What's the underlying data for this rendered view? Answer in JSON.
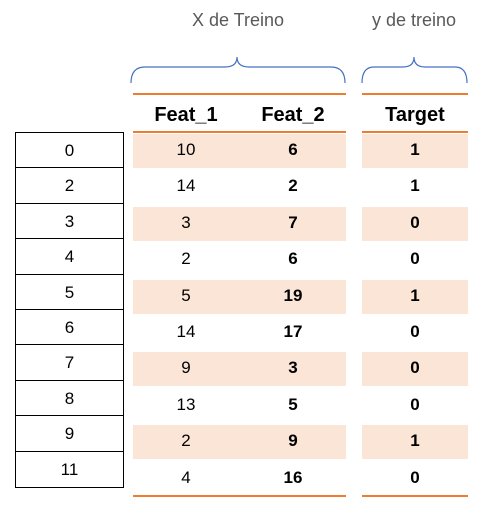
{
  "groups": {
    "x_label": "X de Treino",
    "y_label": "y de treino"
  },
  "columns": {
    "feat1": "Feat_1",
    "feat2": "Feat_2",
    "target": "Target"
  },
  "rows": [
    {
      "index": "0",
      "feat1": "10",
      "feat2": "6",
      "target": "1",
      "shaded": true
    },
    {
      "index": "2",
      "feat1": "14",
      "feat2": "2",
      "target": "1",
      "shaded": false
    },
    {
      "index": "3",
      "feat1": "3",
      "feat2": "7",
      "target": "0",
      "shaded": true
    },
    {
      "index": "4",
      "feat1": "2",
      "feat2": "6",
      "target": "0",
      "shaded": false
    },
    {
      "index": "5",
      "feat1": "5",
      "feat2": "19",
      "target": "1",
      "shaded": true
    },
    {
      "index": "6",
      "feat1": "14",
      "feat2": "17",
      "target": "0",
      "shaded": false
    },
    {
      "index": "7",
      "feat1": "9",
      "feat2": "3",
      "target": "0",
      "shaded": true
    },
    {
      "index": "8",
      "feat1": "13",
      "feat2": "5",
      "target": "0",
      "shaded": false
    },
    {
      "index": "9",
      "feat1": "2",
      "feat2": "9",
      "target": "1",
      "shaded": true
    },
    {
      "index": "11",
      "feat1": "4",
      "feat2": "16",
      "target": "0",
      "shaded": false
    }
  ],
  "colors": {
    "accent_rule": "#ed7d31",
    "row_shade": "#fbe5d6",
    "brace": "#4472c4",
    "group_label": "#595959"
  }
}
